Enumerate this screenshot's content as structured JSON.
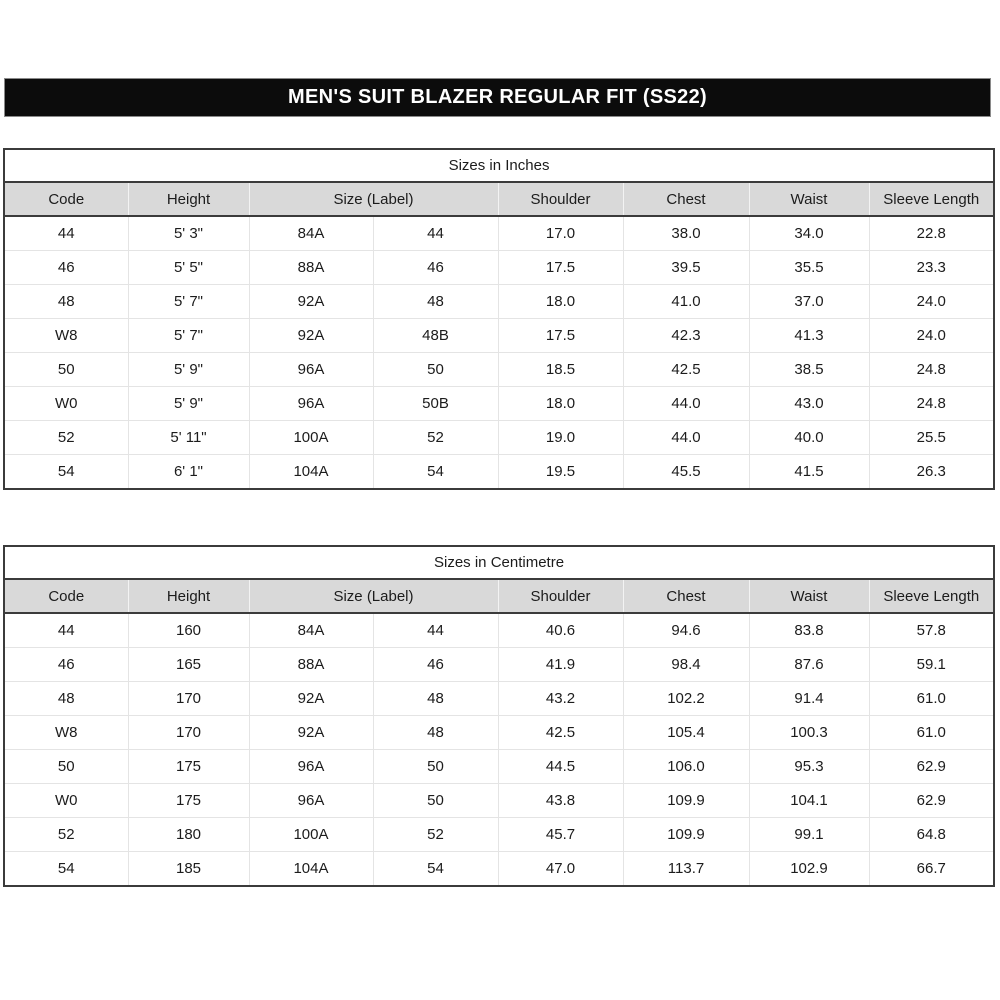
{
  "title": "MEN'S SUIT BLAZER REGULAR FIT (SS22)",
  "columns": {
    "code": "Code",
    "height": "Height",
    "size_label": "Size (Label)",
    "shoulder": "Shoulder",
    "chest": "Chest",
    "waist": "Waist",
    "sleeve_length": "Sleeve Length"
  },
  "tables": [
    {
      "caption": "Sizes in Inches",
      "rows": [
        [
          "44",
          "5' 3\"",
          "84A",
          "44",
          "17.0",
          "38.0",
          "34.0",
          "22.8"
        ],
        [
          "46",
          "5' 5\"",
          "88A",
          "46",
          "17.5",
          "39.5",
          "35.5",
          "23.3"
        ],
        [
          "48",
          "5' 7\"",
          "92A",
          "48",
          "18.0",
          "41.0",
          "37.0",
          "24.0"
        ],
        [
          "W8",
          "5' 7\"",
          "92A",
          "48B",
          "17.5",
          "42.3",
          "41.3",
          "24.0"
        ],
        [
          "50",
          "5' 9\"",
          "96A",
          "50",
          "18.5",
          "42.5",
          "38.5",
          "24.8"
        ],
        [
          "W0",
          "5' 9\"",
          "96A",
          "50B",
          "18.0",
          "44.0",
          "43.0",
          "24.8"
        ],
        [
          "52",
          "5' 11\"",
          "100A",
          "52",
          "19.0",
          "44.0",
          "40.0",
          "25.5"
        ],
        [
          "54",
          "6' 1\"",
          "104A",
          "54",
          "19.5",
          "45.5",
          "41.5",
          "26.3"
        ]
      ]
    },
    {
      "caption": "Sizes in Centimetre",
      "rows": [
        [
          "44",
          "160",
          "84A",
          "44",
          "40.6",
          "94.6",
          "83.8",
          "57.8"
        ],
        [
          "46",
          "165",
          "88A",
          "46",
          "41.9",
          "98.4",
          "87.6",
          "59.1"
        ],
        [
          "48",
          "170",
          "92A",
          "48",
          "43.2",
          "102.2",
          "91.4",
          "61.0"
        ],
        [
          "W8",
          "170",
          "92A",
          "48",
          "42.5",
          "105.4",
          "100.3",
          "61.0"
        ],
        [
          "50",
          "175",
          "96A",
          "50",
          "44.5",
          "106.0",
          "95.3",
          "62.9"
        ],
        [
          "W0",
          "175",
          "96A",
          "50",
          "43.8",
          "109.9",
          "104.1",
          "62.9"
        ],
        [
          "52",
          "180",
          "100A",
          "52",
          "45.7",
          "109.9",
          "99.1",
          "64.8"
        ],
        [
          "54",
          "185",
          "104A",
          "54",
          "47.0",
          "113.7",
          "102.9",
          "66.7"
        ]
      ]
    }
  ],
  "colors": {
    "title_bar_bg": "#0c0c0c",
    "title_text": "#ffffff",
    "header_bg": "#d9d9d9",
    "border_dark": "#3b3b3b",
    "grid_light": "#e4e4e4"
  }
}
